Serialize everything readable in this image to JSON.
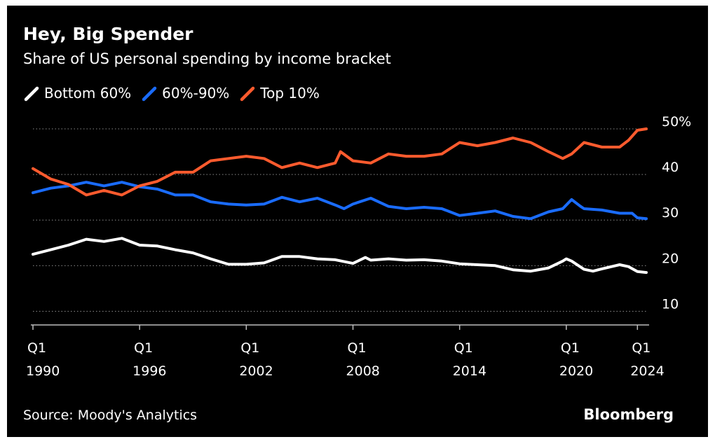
{
  "header": {
    "title": "Hey, Big Spender",
    "subtitle": "Share of US personal spending by income bracket"
  },
  "legend": [
    {
      "label": "Bottom 60%",
      "color": "#ffffff"
    },
    {
      "label": "60%-90%",
      "color": "#1a6cff"
    },
    {
      "label": "Top 10%",
      "color": "#ff5b2e"
    }
  ],
  "footer": {
    "source": "Source: Moody's Analytics",
    "brand": "Bloomberg"
  },
  "chart_data": {
    "type": "line",
    "title": "Hey, Big Spender",
    "subtitle": "Share of US personal spending by income bracket",
    "xlabel": "",
    "ylabel": "",
    "ylim": [
      7,
      50
    ],
    "xlim": [
      1990.0,
      2024.5
    ],
    "grid": "horizontal dotted",
    "legend_position": "top-left",
    "y_ticks": [
      {
        "value": 50,
        "label": "50%"
      },
      {
        "value": 40,
        "label": "40"
      },
      {
        "value": 30,
        "label": "30"
      },
      {
        "value": 20,
        "label": "20"
      },
      {
        "value": 10,
        "label": "10"
      }
    ],
    "x_ticks": [
      {
        "value": 1990,
        "q": "Q1",
        "year": "1990"
      },
      {
        "value": 1996,
        "q": "Q1",
        "year": "1996"
      },
      {
        "value": 2002,
        "q": "Q1",
        "year": "2002"
      },
      {
        "value": 2008,
        "q": "Q1",
        "year": "2008"
      },
      {
        "value": 2014,
        "q": "Q1",
        "year": "2014"
      },
      {
        "value": 2020,
        "q": "Q1",
        "year": "2020"
      },
      {
        "value": 2024,
        "q": "Q1",
        "year": "2024"
      }
    ],
    "series": [
      {
        "name": "Bottom 60%",
        "color": "#ffffff",
        "points": [
          [
            1990,
            22.5
          ],
          [
            1991,
            23.5
          ],
          [
            1992,
            24.5
          ],
          [
            1993,
            25.8
          ],
          [
            1994,
            25.3
          ],
          [
            1995,
            26
          ],
          [
            1996,
            24.5
          ],
          [
            1997,
            24.3
          ],
          [
            1998,
            23.5
          ],
          [
            1999,
            22.8
          ],
          [
            2000,
            21.5
          ],
          [
            2001,
            20.3
          ],
          [
            2002,
            20.3
          ],
          [
            2003,
            20.6
          ],
          [
            2004,
            22
          ],
          [
            2005,
            22
          ],
          [
            2006,
            21.5
          ],
          [
            2007,
            21.3
          ],
          [
            2008,
            20.5
          ],
          [
            2008.7,
            21.8
          ],
          [
            2009,
            21.2
          ],
          [
            2010,
            21.5
          ],
          [
            2011,
            21.2
          ],
          [
            2012,
            21.3
          ],
          [
            2013,
            21
          ],
          [
            2014,
            20.4
          ],
          [
            2015,
            20.2
          ],
          [
            2016,
            20
          ],
          [
            2017,
            19.1
          ],
          [
            2018,
            18.8
          ],
          [
            2019,
            19.5
          ],
          [
            2019.8,
            21
          ],
          [
            2020,
            21.5
          ],
          [
            2020.3,
            21
          ],
          [
            2021,
            19.2
          ],
          [
            2021.5,
            18.8
          ],
          [
            2022,
            19.3
          ],
          [
            2023,
            20.2
          ],
          [
            2023.5,
            19.8
          ],
          [
            2024,
            18.7
          ],
          [
            2024.5,
            18.5
          ]
        ]
      },
      {
        "name": "60%-90%",
        "color": "#1a6cff",
        "points": [
          [
            1990,
            36
          ],
          [
            1991,
            37
          ],
          [
            1992,
            37.5
          ],
          [
            1993,
            38.3
          ],
          [
            1994,
            37.5
          ],
          [
            1995,
            38.3
          ],
          [
            1996,
            37.3
          ],
          [
            1997,
            36.8
          ],
          [
            1998,
            35.5
          ],
          [
            1999,
            35.5
          ],
          [
            2000,
            34
          ],
          [
            2001,
            33.5
          ],
          [
            2002,
            33.3
          ],
          [
            2003,
            33.5
          ],
          [
            2004,
            35
          ],
          [
            2005,
            34
          ],
          [
            2006,
            34.8
          ],
          [
            2007,
            33.3
          ],
          [
            2007.5,
            32.5
          ],
          [
            2008,
            33.5
          ],
          [
            2009,
            34.8
          ],
          [
            2010,
            33
          ],
          [
            2011,
            32.5
          ],
          [
            2012,
            32.8
          ],
          [
            2013,
            32.5
          ],
          [
            2014,
            31
          ],
          [
            2015,
            31.5
          ],
          [
            2016,
            32
          ],
          [
            2017,
            30.8
          ],
          [
            2018,
            30.3
          ],
          [
            2019,
            31.8
          ],
          [
            2019.8,
            32.5
          ],
          [
            2020.3,
            34.5
          ],
          [
            2020.8,
            33
          ],
          [
            2021,
            32.5
          ],
          [
            2022,
            32.2
          ],
          [
            2023,
            31.5
          ],
          [
            2023.7,
            31.5
          ],
          [
            2024,
            30.5
          ],
          [
            2024.5,
            30.3
          ]
        ]
      },
      {
        "name": "Top 10%",
        "color": "#ff5b2e",
        "points": [
          [
            1990,
            41.3
          ],
          [
            1991,
            39
          ],
          [
            1992,
            37.8
          ],
          [
            1993,
            35.5
          ],
          [
            1994,
            36.5
          ],
          [
            1995,
            35.5
          ],
          [
            1996,
            37.5
          ],
          [
            1997,
            38.5
          ],
          [
            1998,
            40.5
          ],
          [
            1999,
            40.5
          ],
          [
            2000,
            43
          ],
          [
            2001,
            43.5
          ],
          [
            2002,
            44
          ],
          [
            2003,
            43.5
          ],
          [
            2004,
            41.5
          ],
          [
            2005,
            42.5
          ],
          [
            2006,
            41.5
          ],
          [
            2007,
            42.5
          ],
          [
            2007.3,
            45
          ],
          [
            2008,
            43
          ],
          [
            2009,
            42.5
          ],
          [
            2010,
            44.5
          ],
          [
            2011,
            44
          ],
          [
            2012,
            44
          ],
          [
            2013,
            44.5
          ],
          [
            2014,
            47
          ],
          [
            2015,
            46.3
          ],
          [
            2016,
            47
          ],
          [
            2017,
            48
          ],
          [
            2018,
            47
          ],
          [
            2019,
            45
          ],
          [
            2019.8,
            43.5
          ],
          [
            2020.3,
            44.5
          ],
          [
            2021,
            47
          ],
          [
            2022,
            46
          ],
          [
            2023,
            46
          ],
          [
            2023.5,
            47.5
          ],
          [
            2024,
            49.7
          ],
          [
            2024.5,
            50
          ]
        ]
      }
    ]
  }
}
